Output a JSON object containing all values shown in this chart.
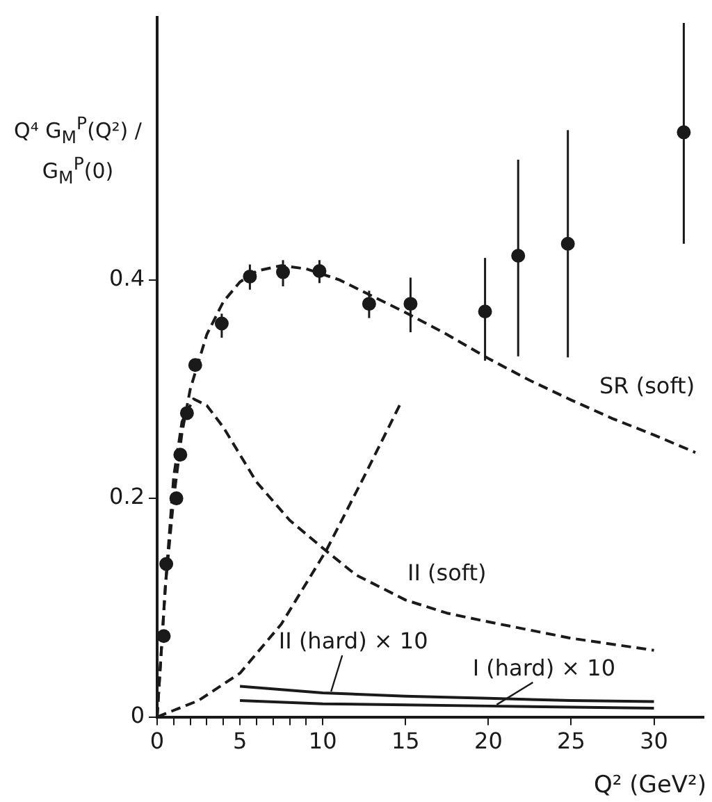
{
  "chart_data": {
    "type": "line",
    "ylabel": "Q⁴ G$_{M}$$^{P}$(Q²) / G$_{M}$$^{P}$(0)",
    "xlabel": "Q² (GeV²)",
    "xlim": [
      0,
      33
    ],
    "ylim": [
      0,
      0.64
    ],
    "xticks": [
      0,
      {
        "value": 1,
        "label": null
      },
      {
        "value": 2,
        "label": null
      },
      {
        "value": 3,
        "label": null
      },
      {
        "value": 4,
        "label": null
      },
      5,
      {
        "value": 6,
        "label": null
      },
      {
        "value": 7,
        "label": null
      },
      {
        "value": 8,
        "label": null
      },
      {
        "value": 9,
        "label": null
      },
      10,
      15,
      20,
      25,
      30
    ],
    "yticks": [
      0,
      0.2,
      0.4
    ],
    "grid": false,
    "legend": false,
    "series": [
      {
        "type": "scatter",
        "marker": "circle",
        "color": "#1a1a1a",
        "x": [
          0.4,
          0.55,
          1.16,
          1.4,
          1.8,
          2.3,
          3.9,
          5.6,
          7.6,
          9.8,
          12.8,
          15.3,
          19.8,
          21.8,
          24.8,
          31.8
        ],
        "values": [
          0.074,
          0.14,
          0.2,
          0.24,
          0.278,
          0.322,
          0.36,
          0.403,
          0.407,
          0.408,
          0.378,
          0.378,
          0.371,
          0.422,
          0.433,
          0.535
        ],
        "errors": [
          null,
          null,
          null,
          null,
          null,
          null,
          [
            0.347,
            0.369
          ],
          [
            0.391,
            0.414
          ],
          [
            0.394,
            0.418
          ],
          [
            0.397,
            0.418
          ],
          [
            0.365,
            0.39
          ],
          [
            0.352,
            0.402
          ],
          [
            0.326,
            0.42
          ],
          [
            0.33,
            0.51
          ],
          [
            0.329,
            0.537
          ],
          [
            0.433,
            0.635
          ]
        ]
      },
      {
        "name": "SR (soft)",
        "line_style": "dashed",
        "marker": "none",
        "color": "#1a1a1a",
        "x": [
          0,
          0.5,
          1,
          1.5,
          2,
          3,
          4,
          5,
          6,
          7.5,
          9,
          11,
          13,
          15,
          17.5,
          20,
          22.5,
          25,
          27.5,
          30,
          32.5
        ],
        "values": [
          0,
          0.12,
          0.2,
          0.26,
          0.3,
          0.35,
          0.38,
          0.398,
          0.408,
          0.413,
          0.41,
          0.4,
          0.385,
          0.37,
          0.35,
          0.328,
          0.308,
          0.29,
          0.273,
          0.258,
          0.242
        ]
      },
      {
        "name": "II (soft)",
        "line_style": "dashed",
        "marker": "none",
        "color": "#1a1a1a",
        "x": [
          0,
          0.5,
          1,
          1.5,
          2.2,
          3,
          4,
          5,
          6,
          8,
          10.2,
          12,
          15,
          17.5,
          20,
          25,
          30
        ],
        "values": [
          0,
          0.12,
          0.22,
          0.27,
          0.291,
          0.285,
          0.265,
          0.24,
          0.215,
          0.18,
          0.152,
          0.13,
          0.107,
          0.095,
          0.087,
          0.072,
          0.061
        ]
      },
      {
        "line_style": "dashed",
        "marker": "none",
        "color": "#1a1a1a",
        "x": [
          0,
          2.5,
          5,
          7.5,
          10.2,
          12.5,
          14.7
        ],
        "values": [
          0,
          0.015,
          0.04,
          0.085,
          0.152,
          0.22,
          0.287
        ]
      },
      {
        "name": "II (hard) × 10",
        "line_style": "solid",
        "marker": "none",
        "color": "#1a1a1a",
        "x": [
          5,
          10,
          15,
          20,
          25,
          30
        ],
        "values": [
          0.028,
          0.022,
          0.019,
          0.017,
          0.015,
          0.014
        ]
      },
      {
        "name": "I (hard) × 10",
        "line_style": "solid",
        "marker": "none",
        "color": "#1a1a1a",
        "x": [
          5,
          10,
          15,
          20,
          25,
          30
        ],
        "values": [
          0.015,
          0.012,
          0.011,
          0.01,
          0.009,
          0.008
        ]
      }
    ]
  }
}
